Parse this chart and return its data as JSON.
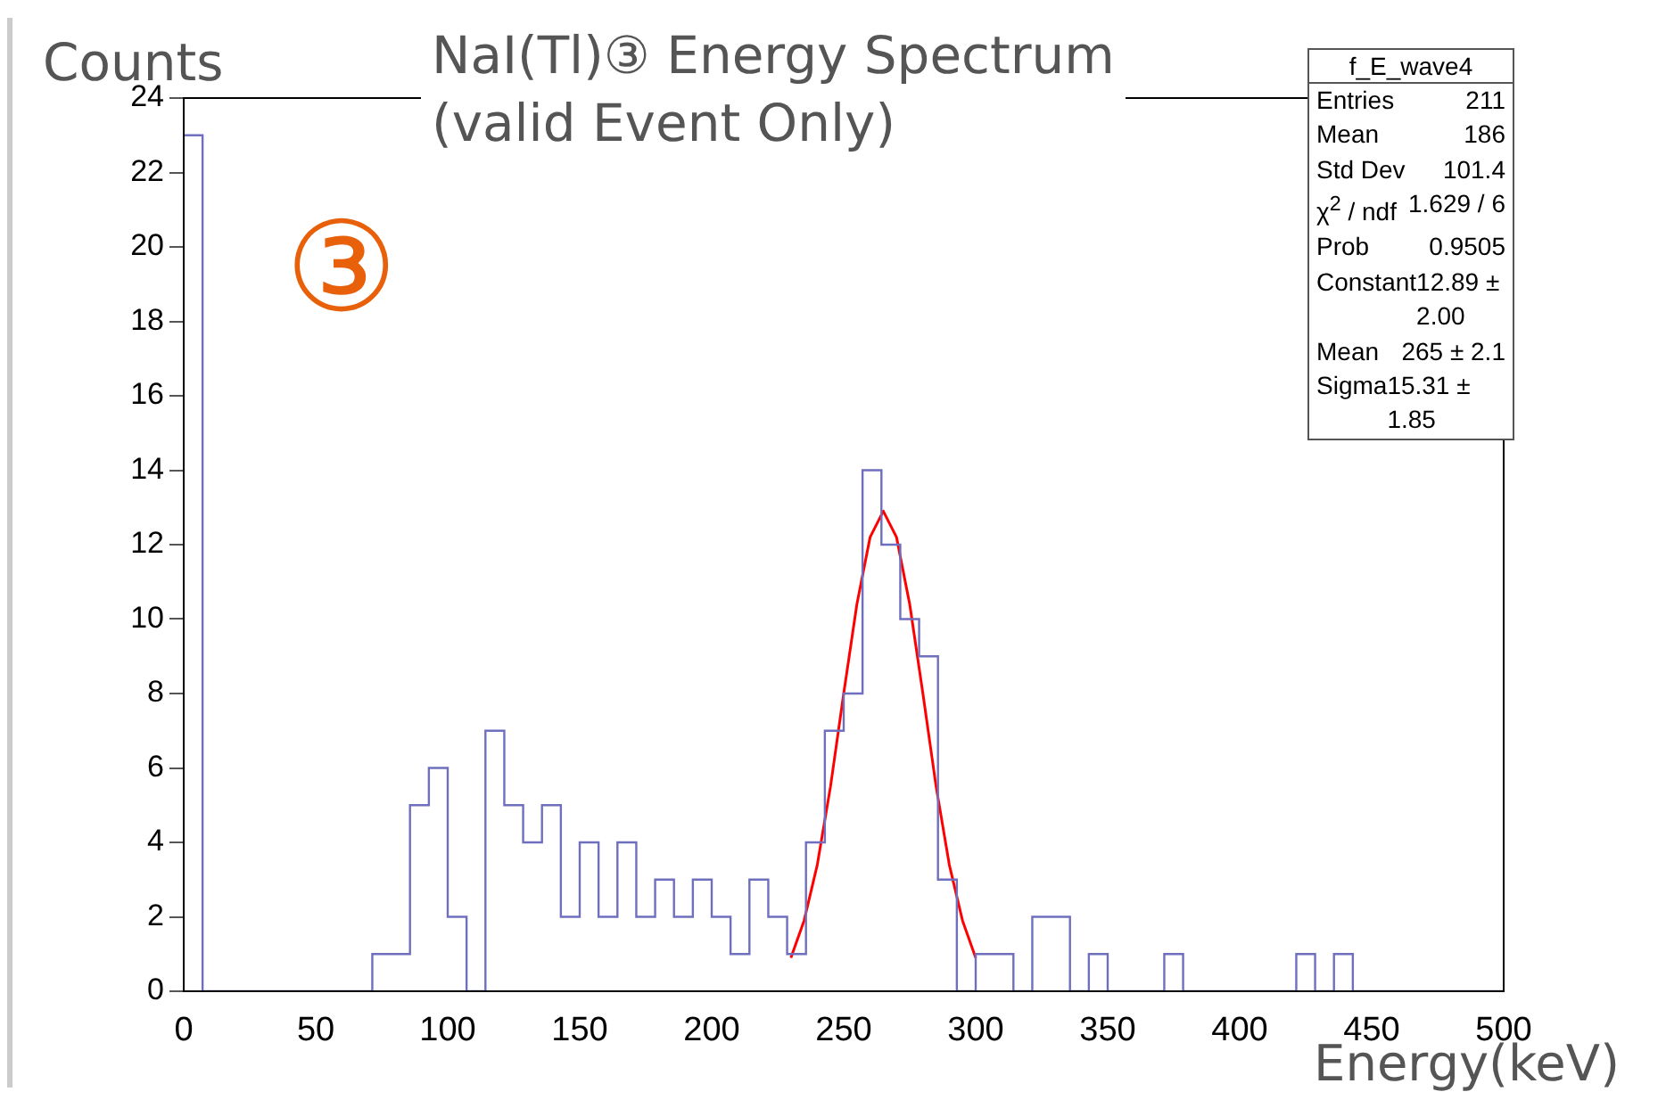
{
  "chart_data": {
    "type": "histogram",
    "title": "NaI(Tl)③ Energy Spectrum\n(valid Event Only)",
    "xlabel": "Energy(keV)",
    "ylabel": "Counts",
    "bins": [
      0,
      7.14,
      14.29,
      21.43,
      28.57,
      35.71,
      42.86,
      50,
      57.14,
      64.29,
      71.43,
      78.57,
      85.71,
      92.86,
      100,
      107.14,
      114.29,
      121.43,
      128.57,
      135.71,
      142.86,
      150,
      157.14,
      164.29,
      171.43,
      178.57,
      185.71,
      192.86,
      200,
      207.14,
      214.29,
      221.43,
      228.57,
      235.71,
      242.86,
      250,
      257.14,
      264.29,
      271.43,
      278.57,
      285.71,
      292.86,
      300,
      307.14,
      314.29,
      321.43,
      328.57,
      335.71,
      342.86,
      350,
      357.14,
      364.29,
      371.43,
      378.57,
      385.71,
      392.86,
      400,
      407.14,
      414.29,
      421.43,
      428.57,
      435.71,
      442.86,
      450,
      457.14,
      464.29,
      471.43,
      478.57,
      485.71,
      492.86,
      500
    ],
    "values": [
      23,
      0,
      0,
      0,
      0,
      0,
      0,
      0,
      0,
      0,
      1,
      1,
      5,
      6,
      2,
      0,
      7,
      5,
      4,
      5,
      2,
      4,
      2,
      4,
      2,
      3,
      2,
      3,
      2,
      1,
      3,
      2,
      1,
      4,
      7,
      8,
      14,
      12,
      10,
      9,
      3,
      0,
      1,
      1,
      0,
      2,
      2,
      0,
      1,
      0,
      0,
      0,
      1,
      0,
      0,
      0,
      0,
      0,
      0,
      1,
      0,
      1,
      0,
      0,
      0,
      0,
      0,
      0,
      0,
      0
    ],
    "color": "#6f6fbf",
    "series": [
      {
        "type": "line",
        "color": "#ff0000",
        "x": [
          230,
          235,
          240,
          245,
          250,
          255,
          260,
          265,
          270,
          275,
          280,
          285,
          290,
          295,
          300
        ],
        "values": [
          0.9,
          1.9,
          3.4,
          5.5,
          8,
          10.4,
          12.2,
          12.9,
          12.2,
          10.4,
          8,
          5.5,
          3.4,
          1.9,
          0.9
        ]
      }
    ],
    "xlim": [
      0,
      500
    ],
    "xticks": [
      0,
      50,
      100,
      150,
      200,
      250,
      300,
      350,
      400,
      450,
      500
    ],
    "ylim": [
      0,
      24
    ],
    "yticks": [
      0,
      2,
      4,
      6,
      8,
      10,
      12,
      14,
      16,
      18,
      20,
      22,
      24
    ],
    "grid": false,
    "legend": false,
    "marker": "none",
    "line_style": "solid",
    "annotations": [
      "③",
      "f_E_wave4",
      "Entries",
      "211",
      "Mean",
      "186",
      "Std Dev",
      "101.4",
      "χ$^{2}$ / ndf",
      "1.629 / 6",
      "Prob",
      "0.9505",
      "Constant",
      "12.89 ± 2.00",
      "Mean",
      "265 ± 2.1",
      "Sigma",
      "15.31 ± 1.85"
    ]
  }
}
